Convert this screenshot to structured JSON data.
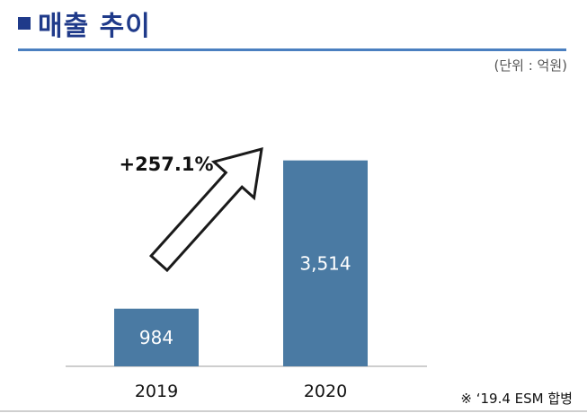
{
  "header": {
    "title": "매출 추이",
    "unit": "(단위 : 억원)"
  },
  "footnote": "※ ‘19.4 ESM 합병",
  "growth_label": "+257.1%",
  "colors": {
    "bar": "#4a7aa3",
    "title": "#1f3a8a",
    "rule": "#4a7fc0"
  },
  "chart_data": {
    "type": "bar",
    "categories": [
      "2019",
      "2020"
    ],
    "values": [
      984,
      3514
    ],
    "data_labels": [
      "984",
      "3,514"
    ],
    "title": "",
    "xlabel": "",
    "ylabel": "",
    "ylim": [
      0,
      3800
    ],
    "grid": false,
    "legend": "none"
  }
}
